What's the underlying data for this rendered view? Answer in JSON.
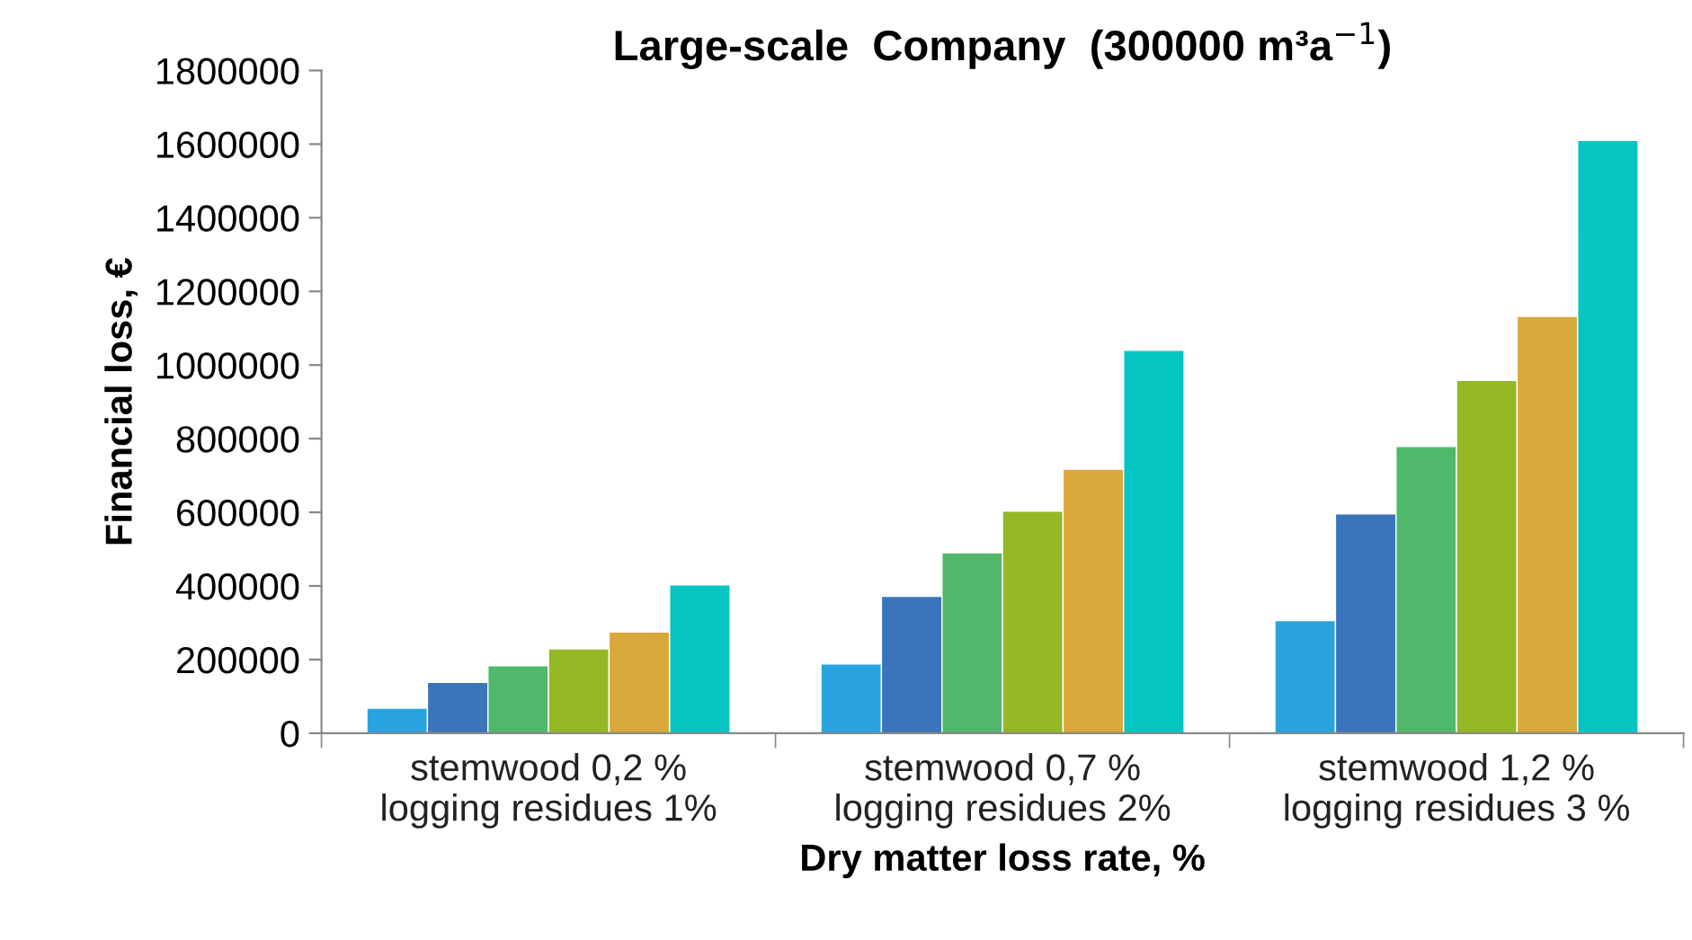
{
  "chart_data": {
    "type": "bar",
    "title": "Large-scale  Company  (300000 m³a$^{−1}$)",
    "xlabel": "Dry matter loss rate, %",
    "ylabel": "Financial loss, €",
    "categories": [
      "stemwood 0,2 %\nlogging residues 1%",
      "stemwood 0,7 %\nlogging residues 2%",
      "stemwood 1,2 %\nlogging residues 3 %"
    ],
    "series": [
      {
        "color": "#29a3e0",
        "values": [
          68000,
          188000,
          306000
        ]
      },
      {
        "color": "#3b74bb",
        "values": [
          138000,
          372000,
          596000
        ]
      },
      {
        "color": "#4fb86a",
        "values": [
          183000,
          490000,
          779000
        ]
      },
      {
        "color": "#93b824",
        "values": [
          229000,
          603000,
          958000
        ]
      },
      {
        "color": "#d8a93a",
        "values": [
          275000,
          717000,
          1132000
        ]
      },
      {
        "color": "#05c6c2",
        "values": [
          403000,
          1040000,
          1610000
        ]
      }
    ],
    "ylim": [
      0,
      1800000
    ],
    "yticks": [
      0,
      200000,
      400000,
      600000,
      800000,
      1000000,
      1200000,
      1400000,
      1600000,
      1800000
    ],
    "grid": false
  }
}
